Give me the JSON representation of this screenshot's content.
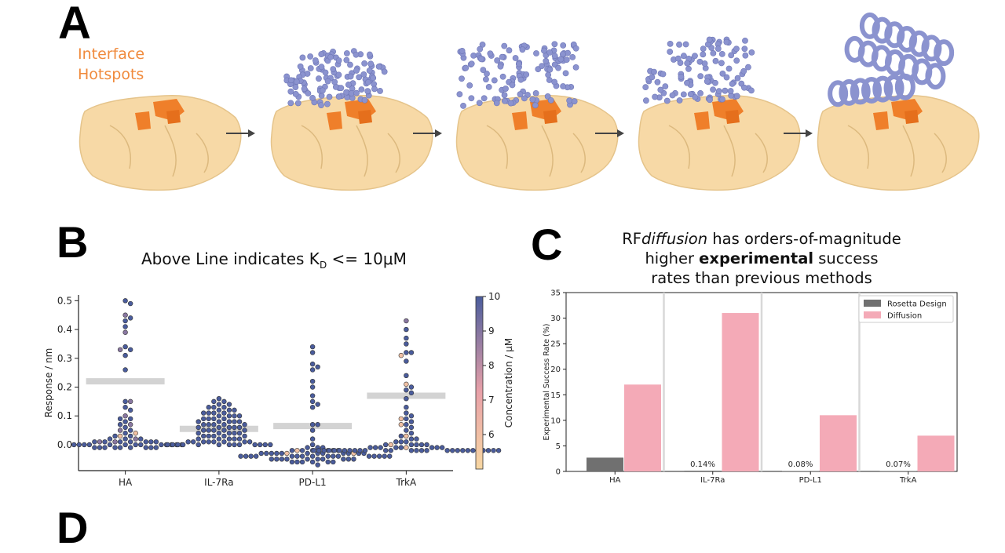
{
  "panel_a": {
    "letter": "A",
    "hotspot_label_line1": "Interface",
    "hotspot_label_line2": "Hotspots",
    "colors": {
      "target": "#f7d9a6",
      "hotspot": "#ef7f2a",
      "binder": "#8b93cf"
    }
  },
  "panel_b": {
    "letter": "B",
    "title_prefix": "Above Line indicates K",
    "title_sub": "D",
    "title_suffix": " <= 10μM"
  },
  "panel_c": {
    "letter": "C",
    "title_l1_a": "RF",
    "title_l1_b": "diffusion",
    "title_l1_c": " has orders-of-magnitude",
    "title_l2_a": "higher ",
    "title_l2_b": "experimental",
    "title_l2_c": " success",
    "title_l3": "rates than previous methods"
  },
  "panel_d": {
    "letter": "D"
  },
  "chart_data": [
    {
      "type": "scatter",
      "subtype": "swarm",
      "categories": [
        "HA",
        "IL-7Ra",
        "PD-L1",
        "TrkA"
      ],
      "ylabel": "Response / nm",
      "ylim": [
        -0.09,
        0.52
      ],
      "yticks": [
        0.0,
        0.1,
        0.2,
        0.3,
        0.4,
        0.5
      ],
      "ytick_labels": [
        "0.0",
        "0.1",
        "0.2",
        "0.3",
        "0.4",
        "0.5"
      ],
      "threshold_lines": [
        0.22,
        0.055,
        0.065,
        0.17
      ],
      "colorbar": {
        "label": "Concentration / μM",
        "ticks": [
          "6",
          "7",
          "8",
          "9",
          "10"
        ],
        "range": [
          5,
          10
        ],
        "low_color": "#f7d7a2",
        "mid_color": "#e8a0a8",
        "high_color": "#4a5c9c"
      },
      "series": [
        {
          "values": [
            0.5,
            0.49,
            0.45,
            0.44,
            0.43,
            0.41,
            0.39,
            0.34,
            0.33,
            0.33,
            0.31,
            0.26,
            0.15,
            0.15,
            0.13,
            0.12,
            0.1,
            0.09,
            0.09,
            0.08,
            0.07,
            0.07,
            0.06,
            0.05,
            0.05,
            0.04,
            0.04,
            0.03,
            0.03,
            0.03,
            0.02,
            0.02,
            0.02,
            0.02,
            0.01,
            0.01,
            0.01,
            0.01,
            0.01,
            0.01,
            0.01,
            0.01,
            0.01,
            0.0,
            0.0,
            0.0,
            0.0,
            0.0,
            0.0,
            0.0,
            0.0,
            0.0,
            0.0,
            0.0,
            0.0,
            0.0,
            -0.01,
            -0.01,
            -0.01,
            -0.01,
            -0.01,
            -0.01,
            -0.01,
            -0.01,
            -0.01
          ],
          "concentrations": [
            10,
            10,
            9,
            10,
            10,
            10,
            9,
            10,
            10,
            9,
            10,
            10,
            10,
            9,
            10,
            10,
            9,
            10,
            10,
            10,
            9,
            10,
            10,
            10,
            9,
            10,
            6,
            10,
            6,
            10,
            10,
            9,
            10,
            10,
            10,
            10,
            9,
            10,
            10,
            10,
            9,
            10,
            10,
            10,
            10,
            10,
            10,
            10,
            10,
            10,
            10,
            10,
            10,
            10,
            10,
            10,
            10,
            10,
            10,
            10,
            10,
            10,
            10,
            10,
            10
          ]
        },
        {
          "values": [
            0.16,
            0.15,
            0.15,
            0.14,
            0.14,
            0.13,
            0.13,
            0.13,
            0.12,
            0.12,
            0.12,
            0.11,
            0.11,
            0.11,
            0.11,
            0.1,
            0.1,
            0.1,
            0.1,
            0.09,
            0.09,
            0.09,
            0.09,
            0.08,
            0.08,
            0.08,
            0.08,
            0.08,
            0.07,
            0.07,
            0.07,
            0.07,
            0.07,
            0.06,
            0.06,
            0.06,
            0.06,
            0.06,
            0.05,
            0.05,
            0.05,
            0.05,
            0.05,
            0.04,
            0.04,
            0.04,
            0.04,
            0.04,
            0.03,
            0.03,
            0.03,
            0.03,
            0.03,
            0.02,
            0.02,
            0.02,
            0.02,
            0.02,
            0.01,
            0.01,
            0.01,
            0.01,
            0.01,
            0.01,
            0.01,
            0.01,
            0.0,
            0.0,
            0.0,
            0.0,
            0.0,
            0.0,
            0.0,
            0.0,
            0.0,
            0.0,
            0.0,
            0.0,
            0.0
          ],
          "concentrations": [
            10,
            10,
            10,
            10,
            10,
            10,
            10,
            10,
            10,
            10,
            10,
            10,
            10,
            10,
            10,
            10,
            10,
            10,
            10,
            10,
            10,
            10,
            10,
            10,
            10,
            10,
            10,
            10,
            10,
            10,
            10,
            10,
            10,
            10,
            10,
            10,
            10,
            10,
            10,
            10,
            10,
            10,
            10,
            10,
            10,
            10,
            10,
            10,
            10,
            10,
            10,
            10,
            10,
            10,
            10,
            10,
            10,
            10,
            10,
            10,
            10,
            10,
            10,
            10,
            10,
            10,
            10,
            10,
            10,
            10,
            10,
            10,
            10,
            10,
            10,
            10,
            10,
            10,
            10
          ]
        },
        {
          "values": [
            0.34,
            0.32,
            0.28,
            0.27,
            0.26,
            0.22,
            0.2,
            0.17,
            0.15,
            0.14,
            0.13,
            0.07,
            0.07,
            0.05,
            0.02,
            0.0,
            -0.01,
            -0.01,
            -0.01,
            -0.02,
            -0.02,
            -0.02,
            -0.02,
            -0.02,
            -0.02,
            -0.02,
            -0.03,
            -0.03,
            -0.03,
            -0.03,
            -0.03,
            -0.03,
            -0.03,
            -0.03,
            -0.03,
            -0.03,
            -0.03,
            -0.03,
            -0.03,
            -0.03,
            -0.04,
            -0.04,
            -0.04,
            -0.04,
            -0.04,
            -0.04,
            -0.04,
            -0.04,
            -0.04,
            -0.04,
            -0.04,
            -0.04,
            -0.04,
            -0.04,
            -0.04,
            -0.04,
            -0.05,
            -0.05,
            -0.05,
            -0.05,
            -0.05,
            -0.05,
            -0.05,
            -0.05,
            -0.05,
            -0.05,
            -0.06,
            -0.06,
            -0.06,
            -0.06,
            -0.06,
            -0.06,
            -0.07
          ],
          "concentrations": [
            10,
            10,
            10,
            10,
            10,
            10,
            10,
            10,
            10,
            10,
            10,
            10,
            10,
            10,
            10,
            10,
            10,
            10,
            10,
            10,
            10,
            10,
            6,
            10,
            10,
            10,
            10,
            10,
            10,
            6,
            10,
            10,
            10,
            10,
            6,
            10,
            10,
            10,
            10,
            10,
            10,
            10,
            10,
            10,
            10,
            10,
            10,
            10,
            10,
            10,
            10,
            10,
            10,
            10,
            10,
            10,
            10,
            10,
            10,
            10,
            10,
            10,
            10,
            10,
            10,
            10,
            10,
            10,
            10,
            10,
            10,
            10,
            10
          ]
        },
        {
          "values": [
            0.43,
            0.4,
            0.37,
            0.35,
            0.32,
            0.32,
            0.31,
            0.29,
            0.24,
            0.21,
            0.2,
            0.19,
            0.18,
            0.16,
            0.13,
            0.11,
            0.1,
            0.09,
            0.09,
            0.08,
            0.07,
            0.07,
            0.06,
            0.05,
            0.04,
            0.03,
            0.03,
            0.02,
            0.02,
            0.01,
            0.01,
            0.01,
            0.0,
            0.0,
            0.0,
            0.0,
            0.0,
            0.0,
            -0.01,
            -0.01,
            -0.01,
            -0.01,
            -0.01,
            -0.01,
            -0.01,
            -0.01,
            -0.01,
            -0.02,
            -0.02,
            -0.02,
            -0.02,
            -0.02,
            -0.02,
            -0.02,
            -0.02,
            -0.02,
            -0.02,
            -0.02,
            -0.02,
            -0.02,
            -0.02,
            -0.02,
            -0.02,
            -0.02,
            -0.02,
            -0.02,
            -0.02,
            -0.02,
            -0.02,
            -0.02,
            -0.02,
            -0.02,
            -0.02,
            -0.02,
            -0.02
          ],
          "concentrations": [
            9,
            10,
            10,
            10,
            10,
            10,
            6,
            10,
            10,
            6,
            10,
            10,
            10,
            10,
            10,
            10,
            10,
            10,
            6,
            10,
            10,
            6,
            10,
            10,
            10,
            6,
            10,
            10,
            10,
            10,
            10,
            10,
            10,
            10,
            10,
            6,
            10,
            10,
            6,
            10,
            10,
            10,
            10,
            10,
            10,
            10,
            10,
            10,
            10,
            10,
            10,
            10,
            10,
            10,
            10,
            10,
            10,
            10,
            10,
            10,
            10,
            10,
            10,
            10,
            10,
            10,
            10,
            10,
            10,
            10,
            10,
            10,
            10,
            10,
            10
          ]
        }
      ]
    },
    {
      "type": "bar",
      "categories": [
        "HA",
        "IL-7Ra",
        "PD-L1",
        "TrkA"
      ],
      "ylabel": "Experimental Success Rate (%)",
      "ylim": [
        0,
        35
      ],
      "yticks": [
        0,
        5,
        10,
        15,
        20,
        25,
        30,
        35
      ],
      "ytick_labels": [
        "0",
        "5",
        "10",
        "15",
        "20",
        "25",
        "30",
        "35"
      ],
      "legend_position": "top-right",
      "series": [
        {
          "name": "Rosetta Design",
          "color": "#707070",
          "values": [
            2.7,
            0.14,
            0.08,
            0.07
          ],
          "labels": [
            "",
            "0.14%",
            "0.08%",
            "0.07%"
          ]
        },
        {
          "name": "Diffusion",
          "color": "#f4aab7",
          "values": [
            17,
            31,
            11,
            7
          ]
        }
      ]
    }
  ]
}
